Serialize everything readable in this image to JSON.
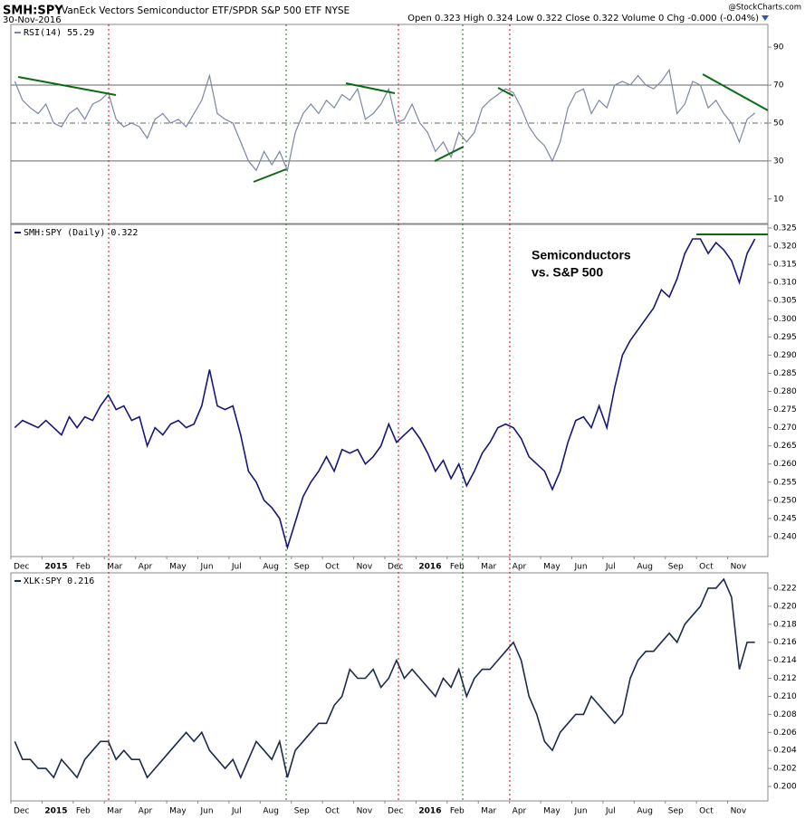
{
  "header": {
    "symbol": "SMH:SPY",
    "description": "VanEck Vectors Semiconductor ETF/SPDR S&P 500 ETF NYSE",
    "date": "30-Nov-2016",
    "source": "@StockCharts.com",
    "quote": "Open 0.323 High 0.324 Low 0.322 Close 0.322 Volume 0 Chg -0.000 (-0.04%)"
  },
  "chart_data": [
    {
      "type": "line",
      "series": [
        {
          "name": "RSI(14) 55.29",
          "color": "#7b87a6",
          "values": [
            72,
            62,
            58,
            55,
            60,
            50,
            48,
            55,
            58,
            52,
            60,
            62,
            66,
            52,
            48,
            50,
            48,
            42,
            52,
            55,
            50,
            52,
            48,
            55,
            62,
            75,
            55,
            52,
            50,
            40,
            30,
            25,
            35,
            28,
            35,
            25,
            45,
            55,
            60,
            55,
            62,
            58,
            65,
            62,
            68,
            52,
            55,
            60,
            68,
            50,
            52,
            60,
            50,
            45,
            35,
            40,
            32,
            45,
            40,
            45,
            58,
            62,
            65,
            68,
            66,
            58,
            48,
            42,
            38,
            30,
            40,
            58,
            66,
            68,
            55,
            62,
            58,
            70,
            72,
            70,
            75,
            70,
            68,
            72,
            78,
            55,
            60,
            72,
            70,
            58,
            62,
            55,
            50,
            40,
            52,
            55.29
          ]
        }
      ],
      "hlines": [
        {
          "value": 70,
          "style": "solid"
        },
        {
          "value": 50,
          "style": "dashdot"
        },
        {
          "value": 30,
          "style": "solid"
        }
      ],
      "ylim": [
        -3,
        102
      ],
      "yticks": [
        90,
        70,
        50,
        30,
        10
      ]
    },
    {
      "type": "line",
      "categories": [
        "Dec",
        null,
        null,
        null,
        "2015",
        null,
        null,
        null,
        "Feb",
        null,
        null,
        null,
        "Mar",
        null,
        null,
        null,
        "Apr",
        null,
        null,
        null,
        "May",
        null,
        null,
        null,
        "Jun",
        null,
        null,
        null,
        "Jul",
        null,
        null,
        null,
        "Aug",
        null,
        null,
        null,
        "Sep",
        null,
        null,
        null,
        "Oct",
        null,
        null,
        null,
        "Nov",
        null,
        null,
        null,
        "Dec",
        null,
        null,
        null,
        "2016",
        null,
        null,
        null,
        "Feb",
        null,
        null,
        null,
        "Mar",
        null,
        null,
        null,
        "Apr",
        null,
        null,
        null,
        "May",
        null,
        null,
        null,
        "Jun",
        null,
        null,
        null,
        "Jul",
        null,
        null,
        null,
        "Aug",
        null,
        null,
        null,
        "Sep",
        null,
        null,
        null,
        "Oct",
        null,
        null,
        null,
        "Nov",
        null,
        null,
        null
      ],
      "series": [
        {
          "name": "SMH:SPY (Daily) 0.322",
          "color": "#17177a",
          "values": [
            0.27,
            0.272,
            0.271,
            0.27,
            0.272,
            0.27,
            0.268,
            0.273,
            0.27,
            0.273,
            0.272,
            0.276,
            0.279,
            0.275,
            0.276,
            0.272,
            0.273,
            0.265,
            0.27,
            0.268,
            0.271,
            0.272,
            0.27,
            0.271,
            0.276,
            0.286,
            0.276,
            0.275,
            0.276,
            0.268,
            0.258,
            0.255,
            0.25,
            0.248,
            0.245,
            0.237,
            0.244,
            0.251,
            0.255,
            0.258,
            0.262,
            0.258,
            0.264,
            0.263,
            0.264,
            0.26,
            0.262,
            0.265,
            0.271,
            0.266,
            0.268,
            0.27,
            0.267,
            0.263,
            0.258,
            0.261,
            0.256,
            0.26,
            0.254,
            0.258,
            0.263,
            0.266,
            0.27,
            0.271,
            0.27,
            0.267,
            0.262,
            0.26,
            0.258,
            0.253,
            0.258,
            0.266,
            0.272,
            0.273,
            0.27,
            0.276,
            0.27,
            0.281,
            0.29,
            0.294,
            0.297,
            0.3,
            0.303,
            0.308,
            0.306,
            0.311,
            0.318,
            0.322,
            0.322,
            0.318,
            0.321,
            0.319,
            0.316,
            0.31,
            0.318,
            0.322
          ]
        }
      ],
      "annotation": [
        "Semiconductors",
        "vs. S&P 500"
      ],
      "ylim": [
        0.2345,
        0.326
      ],
      "yticks": [
        0.325,
        {
          "value": 0.32,
          "label": "0.320"
        },
        0.315,
        {
          "value": 0.31,
          "label": "0.310"
        },
        0.305,
        {
          "value": 0.3,
          "label": "0.300"
        },
        0.295,
        {
          "value": 0.29,
          "label": "0.290"
        },
        0.285,
        {
          "value": 0.28,
          "label": "0.280"
        },
        0.275,
        {
          "value": 0.27,
          "label": "0.270"
        },
        0.265,
        {
          "value": 0.26,
          "label": "0.260"
        },
        0.255,
        {
          "value": 0.25,
          "label": "0.250"
        },
        0.245,
        {
          "value": 0.24,
          "label": "0.240"
        }
      ]
    },
    {
      "type": "line",
      "categories": [
        "Dec",
        null,
        null,
        null,
        "2015",
        null,
        null,
        null,
        "Feb",
        null,
        null,
        null,
        "Mar",
        null,
        null,
        null,
        "Apr",
        null,
        null,
        null,
        "May",
        null,
        null,
        null,
        "Jun",
        null,
        null,
        null,
        "Jul",
        null,
        null,
        null,
        "Aug",
        null,
        null,
        null,
        "Sep",
        null,
        null,
        null,
        "Oct",
        null,
        null,
        null,
        "Nov",
        null,
        null,
        null,
        "Dec",
        null,
        null,
        null,
        "2016",
        null,
        null,
        null,
        "Feb",
        null,
        null,
        null,
        "Mar",
        null,
        null,
        null,
        "Apr",
        null,
        null,
        null,
        "May",
        null,
        null,
        null,
        "Jun",
        null,
        null,
        null,
        "Jul",
        null,
        null,
        null,
        "Aug",
        null,
        null,
        null,
        "Sep",
        null,
        null,
        null,
        "Oct",
        null,
        null,
        null,
        "Nov",
        null,
        null,
        null
      ],
      "series": [
        {
          "name": "XLK:SPY 0.216",
          "color": "#1c2a50",
          "values": [
            0.205,
            0.203,
            0.203,
            0.202,
            0.202,
            0.201,
            0.203,
            0.202,
            0.201,
            0.203,
            0.204,
            0.205,
            0.205,
            0.203,
            0.204,
            0.203,
            0.203,
            0.201,
            0.202,
            0.203,
            0.204,
            0.205,
            0.206,
            0.205,
            0.206,
            0.204,
            0.203,
            0.202,
            0.203,
            0.201,
            0.203,
            0.205,
            0.204,
            0.203,
            0.205,
            0.201,
            0.204,
            0.205,
            0.206,
            0.207,
            0.207,
            0.209,
            0.21,
            0.213,
            0.212,
            0.212,
            0.213,
            0.211,
            0.212,
            0.214,
            0.212,
            0.213,
            0.212,
            0.211,
            0.21,
            0.212,
            0.211,
            0.213,
            0.21,
            0.212,
            0.213,
            0.213,
            0.214,
            0.215,
            0.216,
            0.214,
            0.21,
            0.208,
            0.205,
            0.204,
            0.206,
            0.207,
            0.208,
            0.208,
            0.21,
            0.209,
            0.208,
            0.207,
            0.208,
            0.212,
            0.214,
            0.215,
            0.215,
            0.216,
            0.217,
            0.216,
            0.218,
            0.219,
            0.22,
            0.222,
            0.222,
            0.223,
            0.221,
            0.213,
            0.216,
            0.216
          ]
        }
      ],
      "ylim": [
        0.1984,
        0.2237
      ],
      "yticks": [
        0.222,
        {
          "value": 0.22,
          "label": "0.220"
        },
        0.218,
        0.216,
        0.214,
        0.212,
        {
          "value": 0.21,
          "label": "0.210"
        },
        0.208,
        0.206,
        0.204,
        0.202,
        {
          "value": 0.2,
          "label": "0.200"
        }
      ]
    }
  ]
}
